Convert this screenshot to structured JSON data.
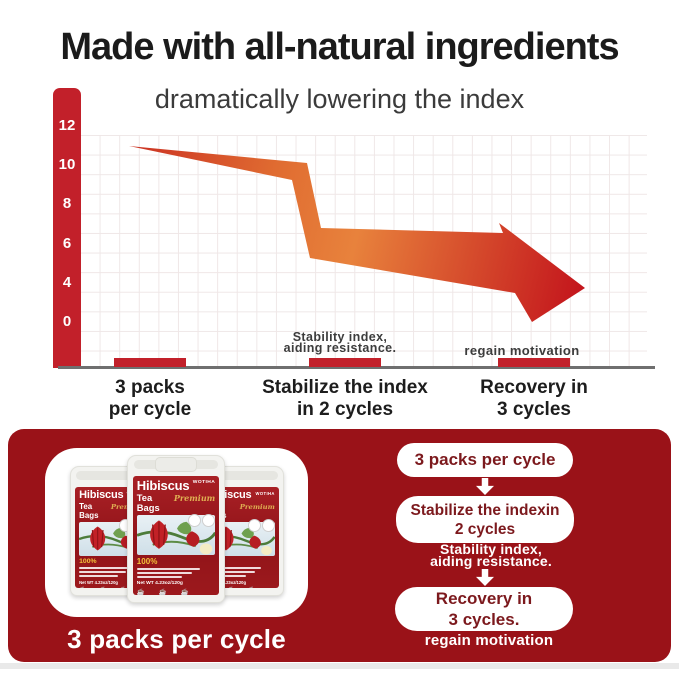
{
  "heading": "Made with all-natural ingredients",
  "chart": {
    "subtitle": "dramatically lowering the index",
    "y_axis_ticks": [
      "12",
      "10",
      "8",
      "6",
      "4",
      "0"
    ],
    "categories": [
      "3 packs\nper cycle",
      "Stabilize the index\nin 2 cycles",
      "Recovery in\n3 cycles"
    ],
    "annotations": [
      "Stability index,\naiding resistance.",
      "regain motivation"
    ]
  },
  "chart_data": {
    "type": "area",
    "title": "dramatically lowering the index",
    "categories": [
      "3 packs per cycle",
      "Stabilize the index in 2 cycles",
      "Recovery in 3 cycles"
    ],
    "values": [
      11,
      5.5,
      4
    ],
    "xlabel": "",
    "ylabel": "",
    "ylim": [
      0,
      13
    ],
    "y_ticks_shown": [
      12,
      10,
      8,
      6,
      4,
      0
    ],
    "grid": true,
    "annotations": [
      "Stability index, aiding resistance.",
      "regain motivation"
    ],
    "style": "downward red-to-orange gradient arrow band"
  },
  "product_panel": {
    "caption": "3 packs per cycle",
    "pouch_count": 3,
    "pouch": {
      "brand": "WOTIHA",
      "title_line1": "Hibiscus",
      "title_line2": "Tea Bags",
      "premium": "Premium",
      "percent": "100%",
      "net_weight": "Net WT 4.23oz/120g",
      "cups": "☕ ☕ ☕"
    }
  },
  "flow": {
    "steps": [
      {
        "type": "pill",
        "text": "3 packs per cycle"
      },
      {
        "type": "arrow"
      },
      {
        "type": "pill",
        "text": "Stabilize the indexin\n2 cycles"
      },
      {
        "type": "note",
        "text": "Stability index,\naiding resistance."
      },
      {
        "type": "arrow"
      },
      {
        "type": "pill",
        "text": "Recovery in\n3 cycles."
      },
      {
        "type": "note",
        "text": "regain motivation"
      }
    ]
  },
  "colors": {
    "panel_red": "#9A1218",
    "axis_red": "#C2202A",
    "arrow_start": "#CC3423",
    "arrow_mid": "#E8823C",
    "arrow_end": "#C3141C",
    "pill_text": "#7C191D",
    "gold": "#DFAF52"
  }
}
